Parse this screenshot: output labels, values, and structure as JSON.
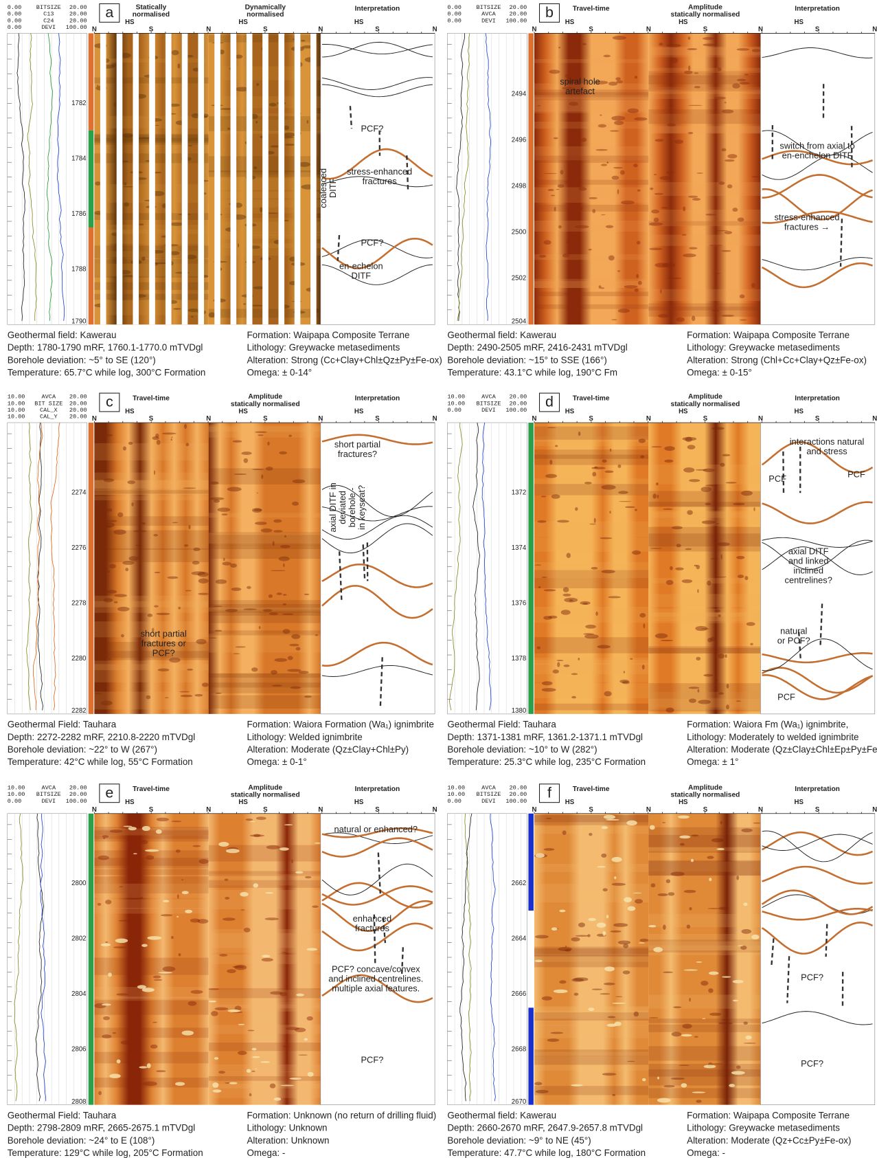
{
  "azimuth_labels": {
    "north": "N",
    "south": "S",
    "high_side": "HS"
  },
  "panels": [
    {
      "letter": "a",
      "curves": [
        [
          "0.00",
          "BITSIZE",
          "20.00"
        ],
        [
          "0.00",
          "C13",
          "20.00"
        ],
        [
          "0.00",
          "C24",
          "20.00"
        ],
        [
          "0.00",
          "DEVI",
          "100.00"
        ]
      ],
      "headers": [
        [
          "Statically",
          "normalised"
        ],
        [
          "Dynamically",
          "normalised"
        ],
        [
          "Interpretation"
        ]
      ],
      "depths": [
        1782,
        1784,
        1786,
        1788,
        1790
      ],
      "annotations": [
        [
          "PCF?"
        ],
        [
          "coalesced",
          "DITF"
        ],
        [
          "stress-enhanced",
          "fractures"
        ],
        [
          "PCF?"
        ],
        [
          "en-echelon",
          "DITF"
        ]
      ],
      "caption_left": [
        "Geothermal field: Kawerau",
        "Depth: 1780-1790 mRF, 1760.1-1770.0 mTVDgl",
        "Borehole deviation: ~5° to SE (120°)",
        "Temperature: 65.7°C while log, 300°C Formation"
      ],
      "caption_right": [
        "Formation: Waipapa Composite Terrane",
        "Lithology: Greywacke metasediments",
        "Alteration: Strong (Cc+Clay+Chl±Qz±Py±Fe-ox)",
        "Omega: ± 0-14°"
      ]
    },
    {
      "letter": "b",
      "curves": [
        [
          "0.00",
          "BITSIZE",
          "20.00"
        ],
        [
          "0.00",
          "AVCA",
          "20.00"
        ],
        [
          "0.00",
          "DEVI",
          "100.00"
        ]
      ],
      "headers": [
        [
          "Travel-time"
        ],
        [
          "Amplitude",
          "statically normalised"
        ],
        [
          "Interpretation"
        ]
      ],
      "depths": [
        2494,
        2496,
        2498,
        2500,
        2502,
        2504
      ],
      "annotations": [
        [
          "spiral hole",
          "artefact"
        ],
        [
          "switch from axial to",
          "en-enchelon DITF"
        ],
        [
          "stress-enhanced",
          "fractures →"
        ]
      ],
      "caption_left": [
        "Geothermal field: Kawerau",
        "Depth: 2490-2505 mRF, 2416-2431 mTVDgl",
        "Borehole deviation: ~15° to SSE (166°)",
        "Temperature: 43.1°C while log, 190°C Fm"
      ],
      "caption_right": [
        "Formation: Waipapa Composite Terrane",
        "Lithology: Greywacke metasediments",
        "Alteration: Strong (Chl+Cc+Clay+Qz±Fe-ox)",
        "Omega: ± 0-15°"
      ]
    },
    {
      "letter": "c",
      "curves": [
        [
          "10.00",
          "AVCA",
          "20.00"
        ],
        [
          "10.00",
          "BIT SIZE",
          "20.00"
        ],
        [
          "10.00",
          "CAL_X",
          "20.00"
        ],
        [
          "10.00",
          "CAL_Y",
          "20.00"
        ]
      ],
      "headers": [
        [
          "Travel-time"
        ],
        [
          "Amplitude",
          "statically normalised"
        ],
        [
          "Interpretation"
        ]
      ],
      "depths": [
        2274,
        2276,
        2278,
        2280,
        2282
      ],
      "annotations": [
        [
          "short partial",
          "fractures?"
        ],
        [
          "axial DITF in",
          "deviated",
          "borehole -",
          "in keyseat?"
        ],
        [
          "short partial",
          "fractures or",
          "PCF?"
        ]
      ],
      "caption_left": [
        "Geothermal Field: Tauhara",
        "Depth: 2272-2282 mRF, 2210.8-2220 mTVDgl",
        "Borehole deviation: ~22° to W (267°)",
        "Temperature: 42°C while log, 55°C Formation"
      ],
      "caption_right": [
        "Formation: Waiora Formation (Wa₁) ignimbrite",
        "Lithology: Welded ignimbrite",
        "Alteration: Moderate (Qz±Clay+Chl±Py)",
        "Omega: ± 0-1°"
      ]
    },
    {
      "letter": "d",
      "curves": [
        [
          "10.00",
          "AVCA",
          "20.00"
        ],
        [
          "10.00",
          "BITSIZE",
          "20.00"
        ],
        [
          "0.00",
          "DEVI",
          "100.00"
        ]
      ],
      "headers": [
        [
          "Travel-time"
        ],
        [
          "Amplitude",
          "statically normalised"
        ],
        [
          "Interpretation"
        ]
      ],
      "depths": [
        1372,
        1374,
        1376,
        1378,
        1380
      ],
      "annotations": [
        [
          "interactions natural",
          "and stress"
        ],
        [
          "PCF"
        ],
        [
          "PCF"
        ],
        [
          "axial DITF",
          "and linked",
          "inclined",
          "centrelines?"
        ],
        [
          "natural",
          "or PCF?"
        ],
        [
          "PCF"
        ]
      ],
      "caption_left": [
        "Geothermal Field: Tauhara",
        "Depth: 1371-1381 mRF, 1361.2-1371.1 mTVDgl",
        "Borehole deviation: ~10° to W (282°)",
        "Temperature: 25.3°C while log, 235°C Formation"
      ],
      "caption_right": [
        "Formation: Waiora Fm (Wa₁) ignimbrite,",
        "Lithology: Moderately to welded ignimbrite",
        "Alteration: Moderate (Qz±Clay±Chl±Ep±Py±Fe-ox)",
        "Omega: ± 1°"
      ]
    },
    {
      "letter": "e",
      "curves": [
        [
          "10.00",
          "AVCA",
          "20.00"
        ],
        [
          "10.00",
          "BITSIZE",
          "20.00"
        ],
        [
          "0.00",
          "DEVI",
          "100.00"
        ]
      ],
      "headers": [
        [
          "Travel-time"
        ],
        [
          "Amplitude",
          "statically normalised"
        ],
        [
          "Interpretation"
        ]
      ],
      "depths": [
        2800,
        2802,
        2804,
        2806,
        2808
      ],
      "annotations": [
        [
          "natural or enhanced?"
        ],
        [
          "enhanced",
          "fractures"
        ],
        [
          "PCF? concave/convex",
          "and inclined centrelines.",
          "multiple axial features."
        ],
        [
          "PCF?"
        ]
      ],
      "caption_left": [
        "Geothermal Field: Tauhara",
        "Depth: 2798-2809 mRF, 2665-2675.1 mTVDgl",
        "Borehole deviation: ~24° to E (108°)",
        "Temperature: 129°C while log, 205°C Formation"
      ],
      "caption_right": [
        "Formation: Unknown (no return of drilling fluid)",
        "Lithology: Unknown",
        "Alteration: Unknown",
        "Omega: -"
      ]
    },
    {
      "letter": "f",
      "curves": [
        [
          "10.00",
          "AVCA",
          "20.00"
        ],
        [
          "10.00",
          "BITSIZE",
          "20.00"
        ],
        [
          "0.00",
          "DEVI",
          "100.00"
        ]
      ],
      "headers": [
        [
          "Travel-time"
        ],
        [
          "Amplitude",
          "statically normalised"
        ],
        [
          "Interpretation"
        ]
      ],
      "depths": [
        2662,
        2664,
        2666,
        2668,
        2670
      ],
      "annotations": [
        [
          "PCF?"
        ],
        [
          "PCF?"
        ]
      ],
      "caption_left": [
        "Geothermal field: Kawerau",
        "Depth: 2660-2670 mRF, 2647.9-2657.8 mTVDgl",
        "Borehole deviation: ~9° to NE (45°)",
        "Temperature: 47.7°C while log, 180°C Formation"
      ],
      "caption_right": [
        "Formation: Waipapa Composite Terrane",
        "Lithology: Greywacke metasediments",
        "Alteration: Moderate (Qz+Cc±Py±Fe-ox)",
        "Omega: -"
      ]
    }
  ]
}
